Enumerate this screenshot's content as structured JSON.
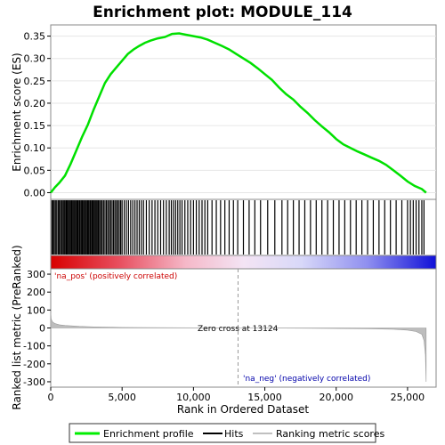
{
  "chart_data": {
    "type": "line",
    "title": "Enrichment plot: MODULE_114",
    "xlabel": "Rank in Ordered Dataset",
    "xlim": [
      0,
      27000
    ],
    "x_ticks": [
      0,
      5000,
      10000,
      15000,
      20000,
      25000
    ],
    "x_tick_labels": [
      "0",
      "5,000",
      "10,000",
      "15,000",
      "20,000",
      "25,000"
    ],
    "es_panel": {
      "ylabel": "Enrichment score (ES)",
      "ylim": [
        -0.015,
        0.375
      ],
      "y_ticks": [
        0.0,
        0.05,
        0.1,
        0.15,
        0.2,
        0.25,
        0.3,
        0.35
      ],
      "y_tick_labels": [
        "0.00",
        "0.05",
        "0.10",
        "0.15",
        "0.20",
        "0.25",
        "0.30",
        "0.35"
      ],
      "color": "#00e000",
      "profile": [
        [
          0,
          0.0
        ],
        [
          300,
          0.012
        ],
        [
          600,
          0.022
        ],
        [
          1000,
          0.038
        ],
        [
          1400,
          0.065
        ],
        [
          1800,
          0.095
        ],
        [
          2200,
          0.125
        ],
        [
          2600,
          0.152
        ],
        [
          3000,
          0.185
        ],
        [
          3400,
          0.215
        ],
        [
          3800,
          0.245
        ],
        [
          4200,
          0.265
        ],
        [
          4600,
          0.28
        ],
        [
          5000,
          0.295
        ],
        [
          5400,
          0.31
        ],
        [
          5800,
          0.32
        ],
        [
          6200,
          0.328
        ],
        [
          6600,
          0.335
        ],
        [
          7000,
          0.34
        ],
        [
          7500,
          0.345
        ],
        [
          8000,
          0.348
        ],
        [
          8500,
          0.355
        ],
        [
          9000,
          0.356
        ],
        [
          9500,
          0.353
        ],
        [
          10000,
          0.35
        ],
        [
          10500,
          0.347
        ],
        [
          11000,
          0.342
        ],
        [
          11500,
          0.335
        ],
        [
          12000,
          0.328
        ],
        [
          12500,
          0.32
        ],
        [
          13000,
          0.31
        ],
        [
          13500,
          0.3
        ],
        [
          14000,
          0.29
        ],
        [
          14500,
          0.278
        ],
        [
          15000,
          0.265
        ],
        [
          15500,
          0.252
        ],
        [
          16000,
          0.235
        ],
        [
          16500,
          0.22
        ],
        [
          17000,
          0.208
        ],
        [
          17500,
          0.192
        ],
        [
          18000,
          0.178
        ],
        [
          18500,
          0.162
        ],
        [
          19000,
          0.148
        ],
        [
          19500,
          0.135
        ],
        [
          20000,
          0.12
        ],
        [
          20500,
          0.108
        ],
        [
          21000,
          0.1
        ],
        [
          21500,
          0.092
        ],
        [
          22000,
          0.085
        ],
        [
          22500,
          0.078
        ],
        [
          23000,
          0.071
        ],
        [
          23500,
          0.062
        ],
        [
          24000,
          0.05
        ],
        [
          24500,
          0.038
        ],
        [
          25000,
          0.025
        ],
        [
          25500,
          0.015
        ],
        [
          26000,
          0.008
        ],
        [
          26300,
          0.0
        ]
      ]
    },
    "hits_panel": {
      "color": "#000000",
      "hit_ranks": [
        80,
        160,
        240,
        330,
        420,
        520,
        600,
        690,
        770,
        860,
        940,
        1010,
        1090,
        1160,
        1240,
        1310,
        1390,
        1460,
        1540,
        1610,
        1690,
        1760,
        1840,
        1910,
        1990,
        2060,
        2140,
        2210,
        2290,
        2360,
        2440,
        2510,
        2590,
        2660,
        2740,
        2810,
        2890,
        2960,
        3040,
        3110,
        3190,
        3260,
        3340,
        3420,
        3510,
        3600,
        3700,
        3800,
        3900,
        4000,
        4100,
        4200,
        4300,
        4400,
        4500,
        4600,
        4700,
        4800,
        4900,
        5000,
        5150,
        5300,
        5450,
        5600,
        5750,
        5900,
        6050,
        6200,
        6350,
        6500,
        6700,
        6900,
        7100,
        7300,
        7500,
        7700,
        7900,
        8100,
        8300,
        8450,
        8600,
        8750,
        8900,
        9050,
        9200,
        9400,
        9600,
        9800,
        10000,
        10200,
        10400,
        10600,
        10800,
        11000,
        11300,
        11600,
        11900,
        12200,
        12500,
        12800,
        13100,
        13500,
        13900,
        14300,
        14700,
        15200,
        15700,
        16200,
        16600,
        17000,
        17400,
        17800,
        18200,
        18600,
        19000,
        19400,
        19800,
        20200,
        20600,
        21000,
        21400,
        21800,
        22200,
        22600,
        23000,
        23400,
        23800,
        24200,
        24600,
        25000,
        25200,
        25400,
        25600,
        25800,
        26000,
        26150
      ]
    },
    "ranked_metric_panel": {
      "ylabel": "Ranked list metric (PreRanked)",
      "ylim": [
        -330,
        330
      ],
      "y_ticks": [
        -300,
        -200,
        -100,
        0,
        100,
        200,
        300
      ],
      "y_tick_labels": [
        "-300",
        "-200",
        "-100",
        "0",
        "100",
        "200",
        "300"
      ],
      "positive_label": "'na_pos' (positively correlated)",
      "negative_label": "'na_neg' (negatively correlated)",
      "zero_cross_label": "Zero cross at 13124",
      "zero_cross": 13124,
      "curve": [
        [
          0,
          90
        ],
        [
          30,
          50
        ],
        [
          80,
          40
        ],
        [
          150,
          32
        ],
        [
          300,
          25
        ],
        [
          600,
          18
        ],
        [
          1000,
          14
        ],
        [
          2000,
          9
        ],
        [
          3000,
          6
        ],
        [
          5000,
          3
        ],
        [
          8000,
          1.5
        ],
        [
          13124,
          0
        ],
        [
          18000,
          -1.5
        ],
        [
          22000,
          -4
        ],
        [
          24000,
          -7
        ],
        [
          25000,
          -12
        ],
        [
          25600,
          -20
        ],
        [
          26000,
          -35
        ],
        [
          26150,
          -70
        ],
        [
          26250,
          -150
        ],
        [
          26300,
          -300
        ]
      ]
    },
    "legend": {
      "items": [
        {
          "label": "Enrichment profile",
          "color": "#00ee00"
        },
        {
          "label": "Hits",
          "color": "#000000"
        },
        {
          "label": "Ranking metric scores",
          "color": "#c0c0c0"
        }
      ]
    }
  }
}
